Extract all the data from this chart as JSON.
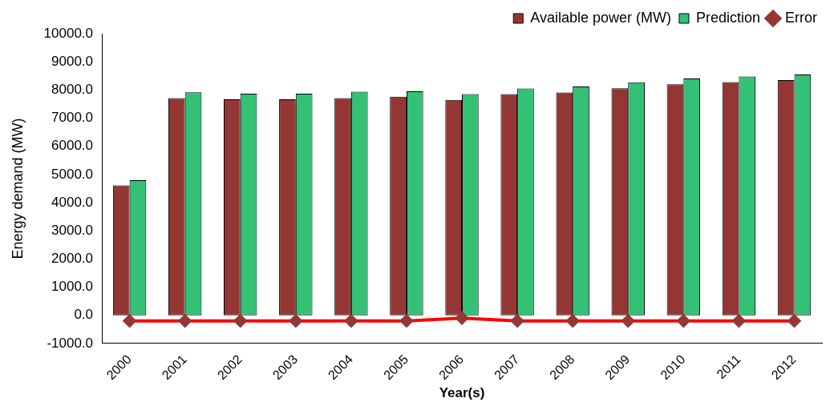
{
  "chart_data": {
    "type": "bar",
    "xlabel": "Year(s)",
    "ylabel": "Energy demand (MW)",
    "categories": [
      "2000",
      "2001",
      "2002",
      "2003",
      "2004",
      "2005",
      "2006",
      "2007",
      "2008",
      "2009",
      "2010",
      "2011",
      "2012"
    ],
    "series": [
      {
        "name": "Available power (MW)",
        "color": "#943634",
        "values": [
          4610,
          7710,
          7670,
          7670,
          7710,
          7760,
          7650,
          7850,
          7910,
          8060,
          8200,
          8280,
          8350
        ]
      },
      {
        "name": "Prediction",
        "color": "#33c175",
        "values": [
          4800,
          7920,
          7870,
          7870,
          7940,
          7950,
          7850,
          8050,
          8120,
          8270,
          8410,
          8480,
          8550
        ]
      },
      {
        "name": "Error",
        "type": "line",
        "color": "#ff0000",
        "marker": "diamond",
        "values": [
          -200,
          -200,
          -200,
          -200,
          -200,
          -200,
          -100,
          -200,
          -200,
          -200,
          -200,
          -200,
          -200
        ]
      }
    ],
    "ylim": [
      -1000,
      10000
    ],
    "yticks": [
      {
        "value": -1000,
        "label": "-1000.0"
      },
      {
        "value": 0,
        "label": "0.0"
      },
      {
        "value": 1000,
        "label": "1000.0"
      },
      {
        "value": 2000,
        "label": "2000.0"
      },
      {
        "value": 3000,
        "label": "3000.0"
      },
      {
        "value": 4000,
        "label": "4000.0"
      },
      {
        "value": 5000,
        "label": "5000.0"
      },
      {
        "value": 6000,
        "label": "6000.0"
      },
      {
        "value": 7000,
        "label": "7000.0"
      },
      {
        "value": 8000,
        "label": "8000.0"
      },
      {
        "value": 9000,
        "label": "9000.0"
      },
      {
        "value": 10000,
        "label": "10000.0"
      }
    ],
    "grid": false,
    "legend": "top right"
  }
}
